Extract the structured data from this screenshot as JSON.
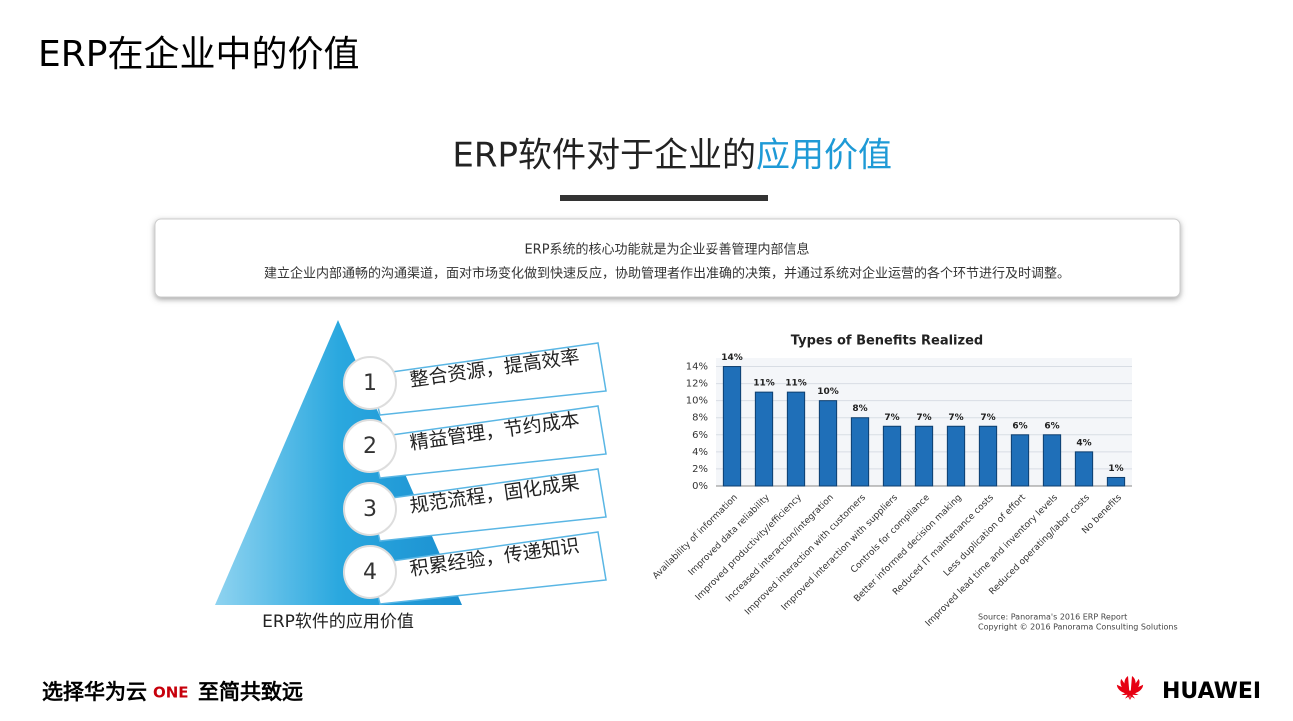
{
  "header": {
    "title": "ERP在企业中的价值"
  },
  "heading": {
    "main": "ERP软件对于企业的",
    "highlight": "应用价值"
  },
  "intro": {
    "lines": [
      "ERP系统的核心功能就是为企业妥善管理内部信息",
      "建立企业内部通畅的沟通渠道，面对市场变化做到快速反应，协助管理者作出准确的决策，并通过系统对企业运营的各个环节进行及时调整。"
    ]
  },
  "pyramid": {
    "caption": "ERP软件的应用价值",
    "items": [
      {
        "number": "1",
        "text": "整合资源，提高效率"
      },
      {
        "number": "2",
        "text": "精益管理，节约成本"
      },
      {
        "number": "3",
        "text": "规范流程，固化成果"
      },
      {
        "number": "4",
        "text": "积累经验，传递知识"
      }
    ]
  },
  "chart_data": {
    "type": "bar",
    "title": "Types of Benefits Realized",
    "categories": [
      "Availability of information",
      "Improved data reliability",
      "Improved productivity/efficiency",
      "Increased interaction/integration",
      "Improved interaction with customers",
      "Improved interaction with suppliers",
      "Controls for compliance",
      "Better informed decision making",
      "Reduced IT maintenance costs",
      "Less duplication of effort",
      "Improved lead time and inventory levels",
      "Reduced operating/labor costs",
      "No benefits"
    ],
    "values": [
      14,
      11,
      11,
      10,
      8,
      7,
      7,
      7,
      7,
      6,
      6,
      4,
      1
    ],
    "value_labels": [
      "14%",
      "11%",
      "11%",
      "10%",
      "8%",
      "7%",
      "7%",
      "7%",
      "7%",
      "6%",
      "6%",
      "4%",
      "1%"
    ],
    "color": "#1f6fb8",
    "ylim": [
      0,
      15
    ],
    "yticks": [
      {
        "value": 0,
        "label": "0%"
      },
      {
        "value": 2,
        "label": "2%"
      },
      {
        "value": 4,
        "label": "4%"
      },
      {
        "value": 6,
        "label": "6%"
      },
      {
        "value": 8,
        "label": "8%"
      },
      {
        "value": 10,
        "label": "10%"
      },
      {
        "value": 12,
        "label": "12%"
      },
      {
        "value": 14,
        "label": "14%"
      }
    ],
    "grid": true,
    "source": [
      "Source: Panorama's 2016 ERP Report",
      "Copyright © 2016 Panorama Consulting Solutions"
    ]
  },
  "footer": {
    "slogan_start": "选择华为云",
    "slogan_one": "ONE",
    "slogan_end": "至简共致远",
    "brand": "HUAWEI"
  }
}
